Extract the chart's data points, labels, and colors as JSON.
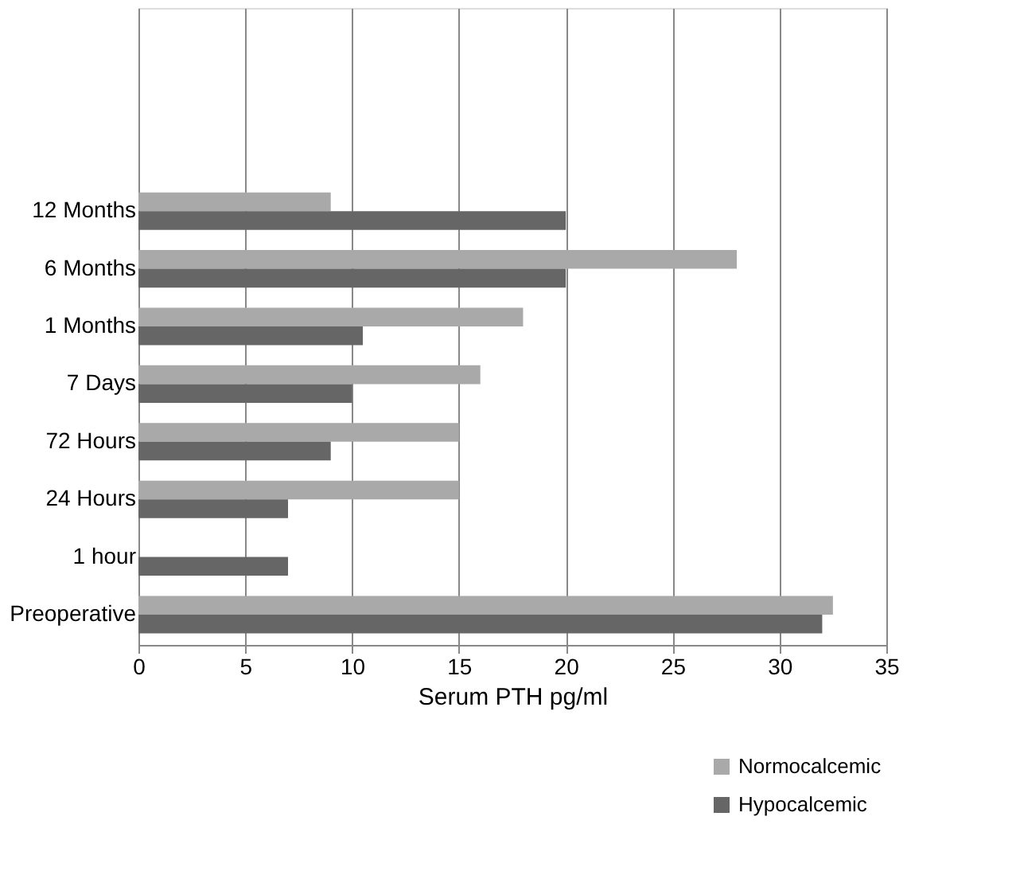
{
  "chart_data": {
    "type": "bar",
    "orientation": "horizontal",
    "xlabel": "Serum PTH pg/ml",
    "categories": [
      null,
      null,
      null,
      "12 Months",
      "6 Months",
      "1 Months",
      "7 Days",
      "72 Hours",
      "24 Hours",
      "1 hour",
      "Preoperative"
    ],
    "series": [
      {
        "name": "Normocalcemic",
        "color": "#a9a9a9",
        "values": [
          null,
          null,
          null,
          9,
          28,
          18,
          16,
          15,
          15,
          null,
          32.5
        ]
      },
      {
        "name": "Hypocalcemic",
        "color": "#666666",
        "values": [
          null,
          null,
          null,
          20,
          20,
          10.5,
          10,
          9,
          7,
          7,
          32
        ]
      }
    ],
    "xlim": [
      0,
      35
    ],
    "xticks": [
      0,
      5,
      10,
      15,
      20,
      25,
      30,
      35
    ],
    "grid": "x",
    "legend": "bottom right"
  }
}
